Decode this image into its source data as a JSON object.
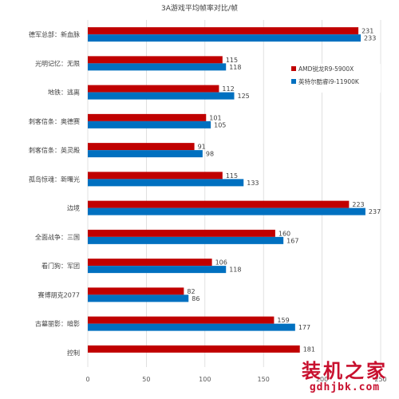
{
  "chart_data": {
    "type": "bar",
    "orientation": "horizontal",
    "title": "3A游戏平均帧率对比/帧",
    "categories": [
      "德军总部：新血脉",
      "光明记忆：无限",
      "地铁：逃离",
      "刺客信条：奥德赛",
      "刺客信条：英灵殿",
      "孤岛惊魂：新曙光",
      "边境",
      "全面战争：三国",
      "看门狗：军团",
      "赛博朋克2077",
      "古墓丽影：暗影",
      "控制"
    ],
    "series": [
      {
        "name": "AMD锐龙R9-5900X",
        "color": "#c00000",
        "values": [
          231,
          115,
          112,
          101,
          91,
          115,
          223,
          160,
          106,
          82,
          159,
          181
        ]
      },
      {
        "name": "英特尔酷睿i9-11900K",
        "color": "#0070c0",
        "values": [
          233,
          118,
          125,
          105,
          98,
          133,
          237,
          167,
          118,
          86,
          177,
          null
        ]
      }
    ],
    "xlim": [
      0,
      250
    ],
    "xticks": [
      "0",
      "50",
      "100",
      "150",
      "200",
      "250"
    ],
    "grid": true,
    "legend": "right"
  },
  "watermark": {
    "text": "装机之家",
    "url": "gdhjbk.com"
  }
}
